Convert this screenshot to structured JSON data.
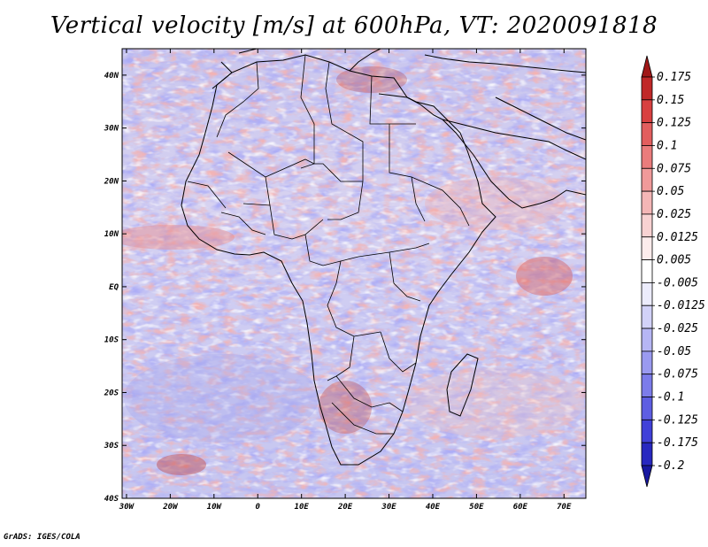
{
  "title": "Vertical velocity [m/s] at 600hPa, VT: 2020091818",
  "credit": "GrADS: IGES/COLA",
  "axes": {
    "lat_labels": [
      "40N",
      "30N",
      "20N",
      "10N",
      "EQ",
      "10S",
      "20S",
      "30S",
      "40S"
    ],
    "lat_values": [
      40,
      30,
      20,
      10,
      0,
      -10,
      -20,
      -30,
      -40
    ],
    "lon_labels": [
      "30W",
      "20W",
      "10W",
      "0",
      "10E",
      "20E",
      "30E",
      "40E",
      "50E",
      "60E",
      "70E"
    ],
    "lon_values": [
      -30,
      -20,
      -10,
      0,
      10,
      20,
      30,
      40,
      50,
      60,
      70
    ],
    "lat_range": [
      -40,
      45
    ],
    "lon_range": [
      -31,
      75
    ]
  },
  "colorbar": {
    "levels": [
      "0.175",
      "0.15",
      "0.125",
      "0.1",
      "0.075",
      "0.05",
      "0.025",
      "0.0125",
      "0.005",
      "-0.005",
      "-0.0125",
      "-0.025",
      "-0.05",
      "-0.075",
      "-0.1",
      "-0.125",
      "-0.175",
      "-0.2"
    ],
    "colors": [
      "#a01818",
      "#c02828",
      "#d84040",
      "#e25e5e",
      "#ea7c7c",
      "#f09a9a",
      "#f4b6b6",
      "#f8d2d2",
      "#fcecec",
      "#ffffff",
      "#ececfc",
      "#d2d2f8",
      "#b6b6f4",
      "#9a9af0",
      "#7c7cea",
      "#5e5ee2",
      "#4040d8",
      "#2828c0",
      "#1818a0"
    ]
  }
}
